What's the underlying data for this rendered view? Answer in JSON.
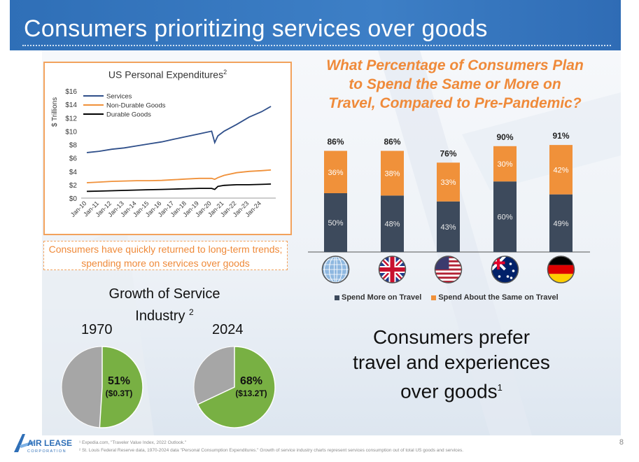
{
  "slide": {
    "title": "Consumers prioritizing services over goods",
    "page_number": "8"
  },
  "line_chart": {
    "title": "US Personal Expenditures",
    "title_sup": "2",
    "ylabel": "$ Trillions",
    "legend": [
      "Services",
      "Non-Durable Goods",
      "Durable Goods"
    ],
    "colors": [
      "#2f4f8a",
      "#f0913a",
      "#000000"
    ]
  },
  "callout": "Consumers have quickly returned to long-term trends; spending more on services over goods",
  "bar_chart": {
    "title_lines": [
      "What Percentage of Consumers Plan",
      "to Spend the Same or More on",
      "Travel, Compared to Pre-Pandemic?"
    ],
    "legend": [
      "Spend More on Travel",
      "Spend About the Same on Travel"
    ],
    "colors": [
      "#3d4a5c",
      "#f0913a"
    ],
    "flags": [
      "globe-icon",
      "uk-flag-icon",
      "us-flag-icon",
      "australia-flag-icon",
      "germany-flag-icon"
    ]
  },
  "services": {
    "title": "Growth of Service Industry",
    "title_sup": "2",
    "charts": [
      {
        "year": "1970",
        "label": "51%",
        "sublabel": "($0.3T)",
        "share": 0.51
      },
      {
        "year": "2024",
        "label": "68%",
        "sublabel": "($13.2T)",
        "share": 0.68
      }
    ],
    "colors": [
      "#78b043",
      "#a6a6a6"
    ]
  },
  "prefer": {
    "lines": [
      "Consumers prefer",
      "travel and experiences",
      "over goods"
    ],
    "sup": "1"
  },
  "footnotes": [
    "¹ Expedia.com, \"Traveler Value Index, 2022 Outlook.\"",
    "² St. Louis Federal Reserve data, 1970-2024 data \"Personal Consumption Expenditures.\"  Growth of service industry charts represent services consumption out of total US goods and services."
  ],
  "logo": {
    "text": "AIR LEASE",
    "sub": "CORPORATION"
  },
  "chart_data": [
    {
      "type": "line",
      "title": "US Personal Expenditures",
      "ylabel": "$ Trillions",
      "ylim": [
        0,
        16
      ],
      "yticks": [
        "$0",
        "$2",
        "$4",
        "$6",
        "$8",
        "$10",
        "$12",
        "$14",
        "$16"
      ],
      "xticks": [
        "Jan-10",
        "Jan-11",
        "Jan-12",
        "Jan-13",
        "Jan-14",
        "Jan-15",
        "Jan-16",
        "Jan-17",
        "Jan-18",
        "Jan-19",
        "Jan-20",
        "Jan-21",
        "Jan-22",
        "Jan-23",
        "Jan-24"
      ],
      "x": [
        "Jan-10",
        "Jan-11",
        "Jan-12",
        "Jan-13",
        "Jan-14",
        "Jan-15",
        "Jan-16",
        "Jan-17",
        "Jan-18",
        "Jan-19",
        "Jan-20",
        "Apr-20",
        "Jul-20",
        "Jan-21",
        "Jan-22",
        "Jan-23",
        "Jan-24",
        "Oct-24"
      ],
      "series": [
        {
          "name": "Services",
          "values": [
            6.8,
            7.0,
            7.3,
            7.5,
            7.8,
            8.1,
            8.4,
            8.8,
            9.2,
            9.6,
            10.0,
            8.3,
            9.3,
            10.0,
            11.0,
            12.1,
            12.9,
            13.7
          ]
        },
        {
          "name": "Non-Durable Goods",
          "values": [
            2.3,
            2.4,
            2.5,
            2.55,
            2.6,
            2.6,
            2.65,
            2.75,
            2.85,
            2.95,
            2.95,
            2.8,
            3.05,
            3.4,
            3.8,
            4.0,
            4.1,
            4.2
          ]
        },
        {
          "name": "Durable Goods",
          "values": [
            1.0,
            1.05,
            1.1,
            1.15,
            1.2,
            1.25,
            1.3,
            1.35,
            1.4,
            1.45,
            1.45,
            1.3,
            1.75,
            1.9,
            2.0,
            2.0,
            2.05,
            2.1
          ]
        }
      ],
      "grid": false,
      "legend_position": "top-left"
    },
    {
      "type": "bar",
      "stacked": true,
      "categories": [
        "Global",
        "UK",
        "US",
        "Australia",
        "Germany"
      ],
      "totals": [
        "86%",
        "86%",
        "76%",
        "90%",
        "91%"
      ],
      "series": [
        {
          "name": "Spend More on Travel",
          "values": [
            50,
            48,
            43,
            60,
            49
          ]
        },
        {
          "name": "Spend About the Same on Travel",
          "values": [
            36,
            38,
            33,
            30,
            42
          ]
        }
      ],
      "legend_position": "bottom"
    },
    {
      "type": "pie",
      "title": "1970",
      "values": [
        51,
        49
      ],
      "labels": [
        "51%",
        ""
      ]
    },
    {
      "type": "pie",
      "title": "2024",
      "values": [
        68,
        32
      ],
      "labels": [
        "68%",
        ""
      ]
    }
  ]
}
